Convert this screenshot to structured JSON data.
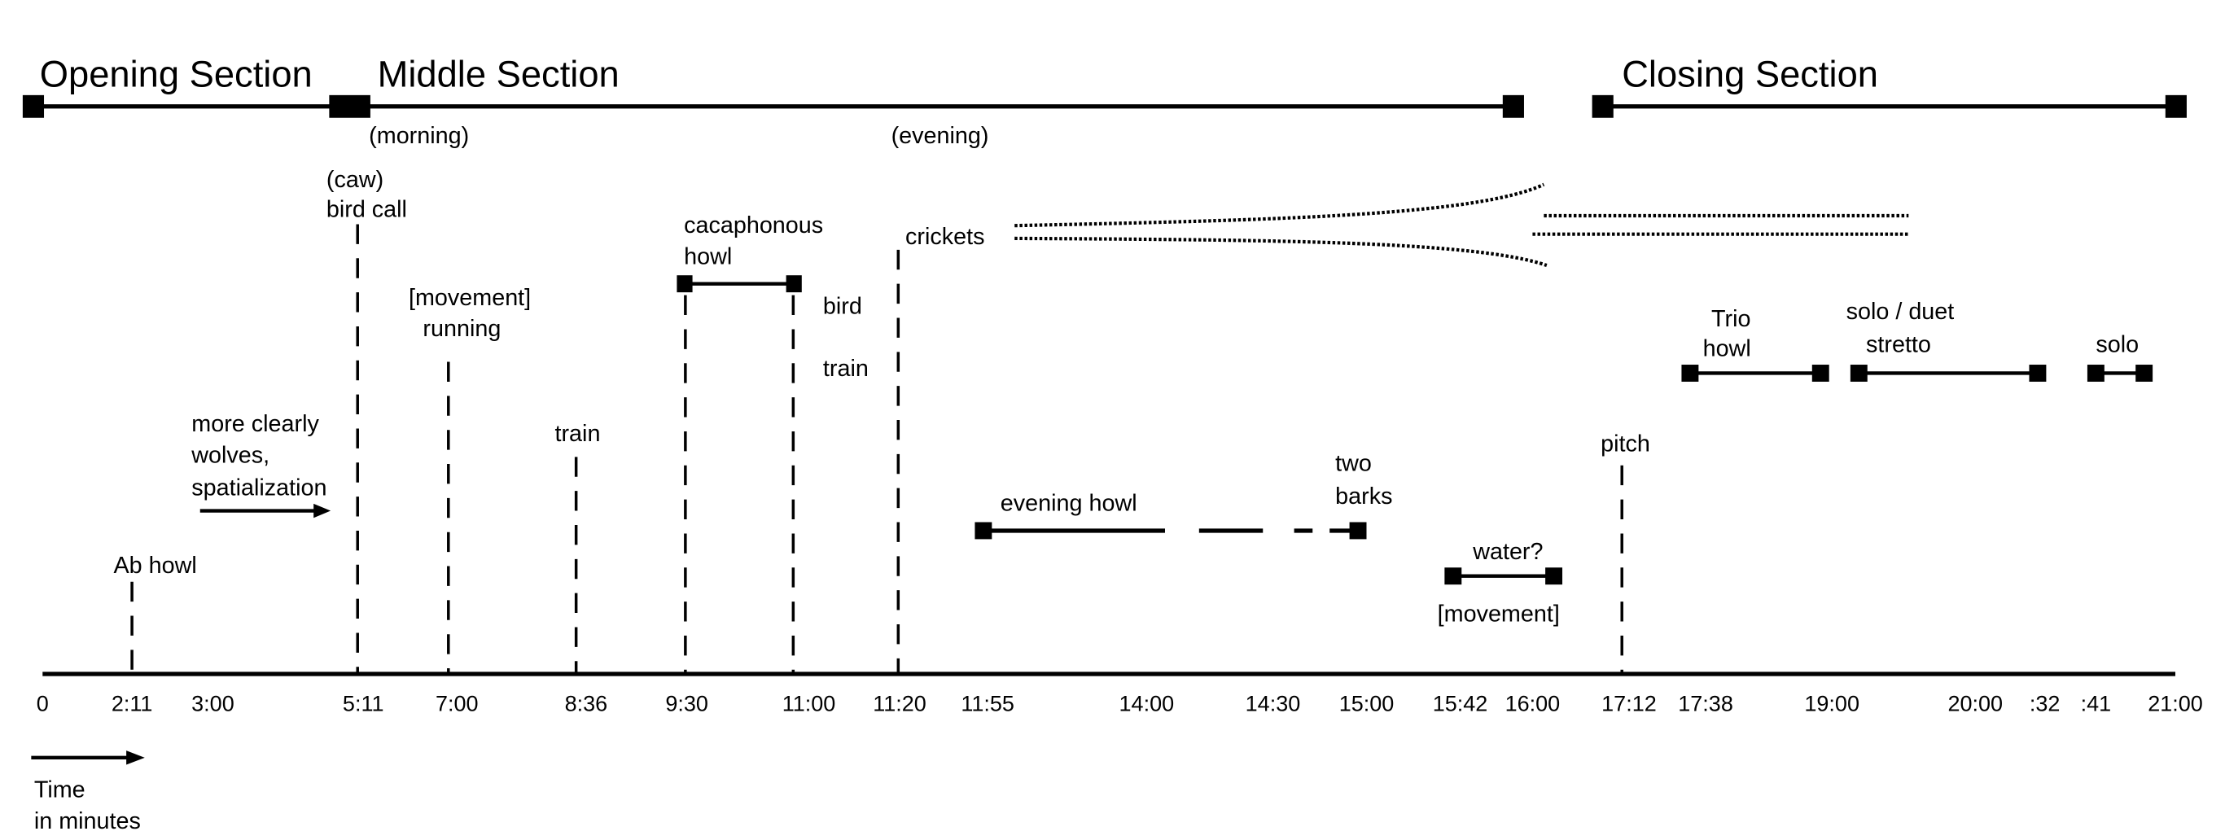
{
  "sections": {
    "opening": "Opening Section",
    "middle": "Middle Section",
    "closing": "Closing Section",
    "morning": "(morning)",
    "evening": "(evening)"
  },
  "events": {
    "ab_howl": "Ab howl",
    "caw": "(caw)",
    "bird_call": "bird call",
    "movement_1": "[movement]",
    "running": "running",
    "train_1": "train",
    "more_clearly": [
      "more clearly",
      "wolves,",
      "spatialization"
    ],
    "cacaphonous": [
      "cacaphonous",
      "howl"
    ],
    "bird": "bird",
    "train_2": "train",
    "crickets": "crickets",
    "evening_howl": "evening howl",
    "two_barks": [
      "two",
      "barks"
    ],
    "water": "water?",
    "movement_2": "[movement]",
    "pitch": "pitch",
    "trio_howl": [
      "Trio",
      "howl"
    ],
    "solo_duet": [
      "solo / duet",
      "stretto"
    ],
    "solo": "solo"
  },
  "axis": {
    "ticks": [
      "0",
      "2:11",
      "3:00",
      "5:11",
      "7:00",
      "8:36",
      "9:30",
      "11:00",
      "11:20",
      "11:55",
      "14:00",
      "14:30",
      "15:00",
      "15:42",
      "16:00",
      "17:12",
      "17:38",
      "19:00",
      "20:00",
      ":32",
      ":41",
      "21:00"
    ],
    "legend": [
      "Time",
      "in minutes"
    ]
  }
}
